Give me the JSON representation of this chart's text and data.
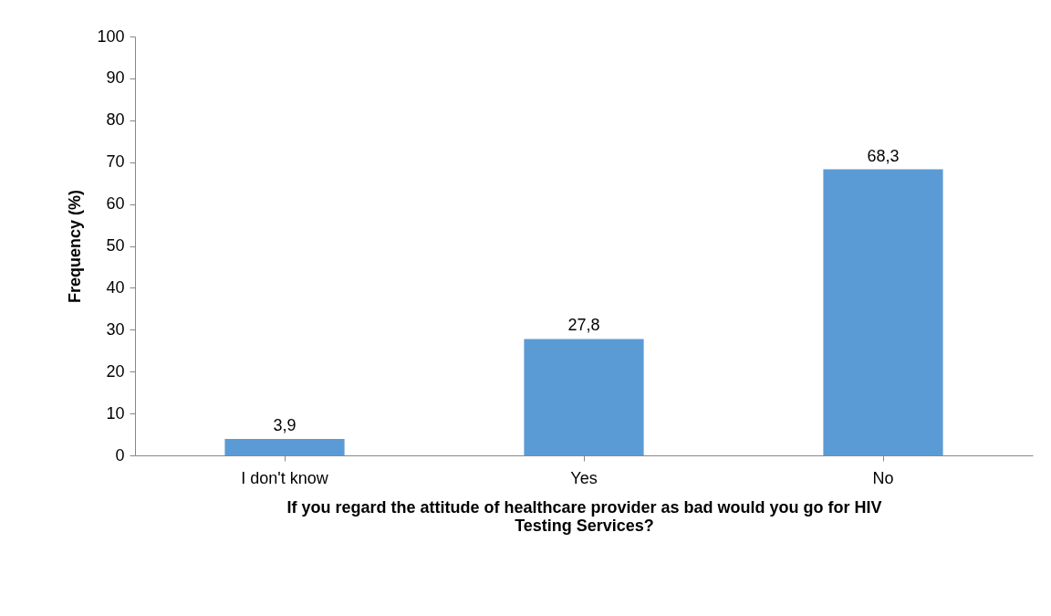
{
  "chart_data": {
    "type": "bar",
    "xlabel": "If you regard the attitude of healthcare provider as bad would you go for HIV Testing Services?",
    "ylabel": "Frequency (%)",
    "categories": [
      "I don't know",
      "Yes",
      "No"
    ],
    "values": [
      3.9,
      27.8,
      68.3
    ],
    "value_labels": [
      "3,9",
      "27,8",
      "68,3"
    ],
    "color": "#5b9bd5",
    "ylim": [
      0,
      100
    ],
    "yticks": [
      0,
      10,
      20,
      30,
      40,
      50,
      60,
      70,
      80,
      90,
      100
    ],
    "grid": false
  }
}
